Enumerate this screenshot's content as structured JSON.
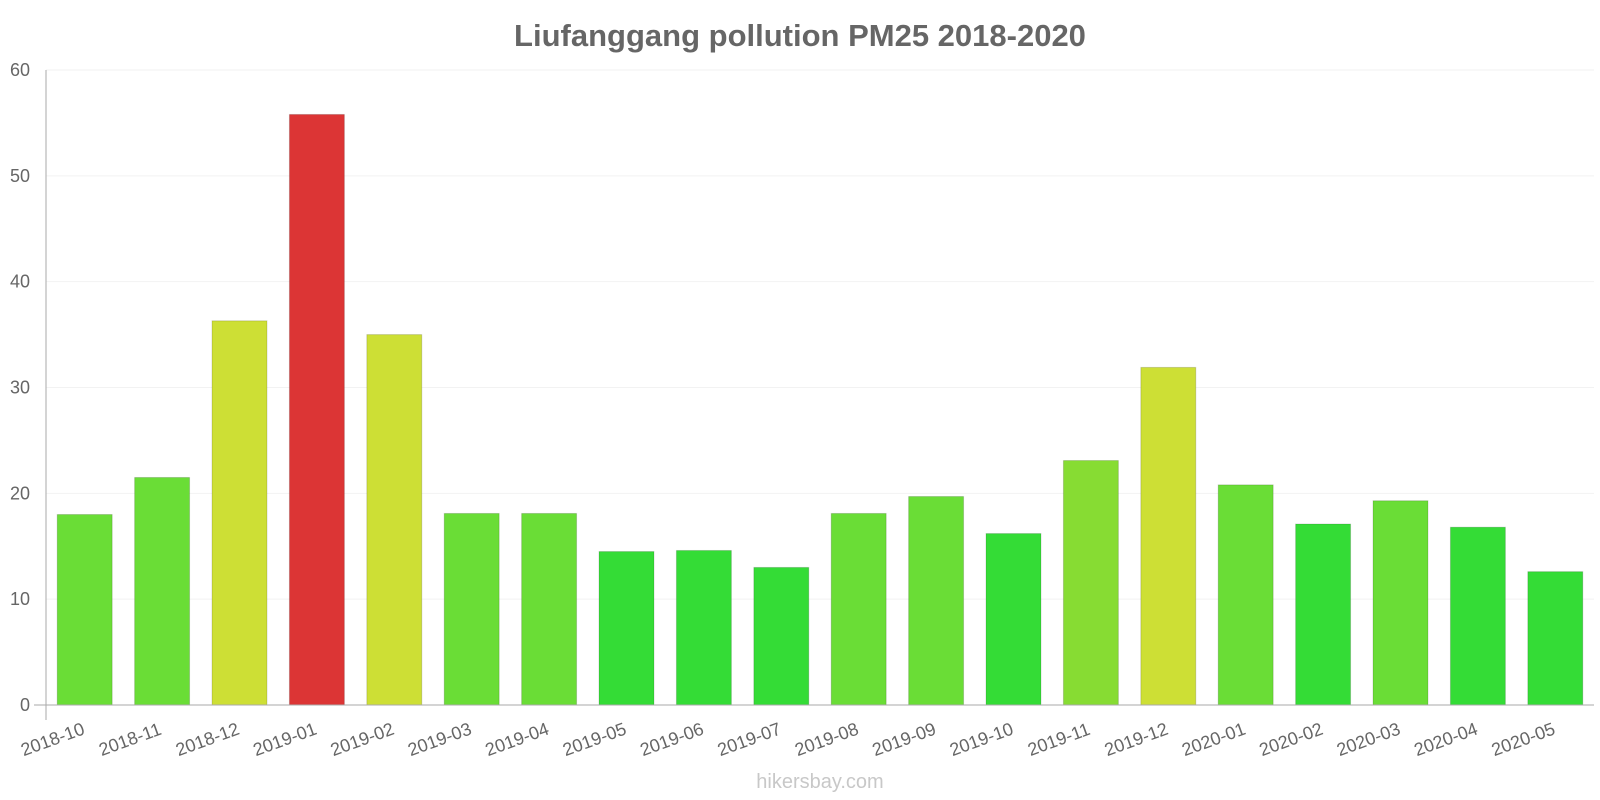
{
  "chart_data": {
    "type": "bar",
    "title": "Liufanggang pollution PM25 2018-2020",
    "xlabel": "",
    "ylabel": "",
    "ylim": [
      0,
      60
    ],
    "yticks": [
      0,
      10,
      20,
      30,
      40,
      50,
      60
    ],
    "grid": true,
    "categories": [
      "2018-10",
      "2018-11",
      "2018-12",
      "2019-01",
      "2019-02",
      "2019-03",
      "2019-04",
      "2019-05",
      "2019-06",
      "2019-07",
      "2019-08",
      "2019-09",
      "2019-10",
      "2019-11",
      "2019-12",
      "2020-01",
      "2020-02",
      "2020-03",
      "2020-04",
      "2020-05"
    ],
    "values": [
      18,
      21.5,
      36.3,
      55.8,
      35,
      18.1,
      18.1,
      14.5,
      14.6,
      13,
      18.1,
      19.7,
      16.2,
      23.1,
      31.9,
      20.8,
      17.1,
      19.3,
      16.8,
      12.6
    ],
    "colors": [
      "#6add36",
      "#6add36",
      "#cddf35",
      "#dc3535",
      "#cddf35",
      "#6add36",
      "#6add36",
      "#34dc36",
      "#34dc36",
      "#34dc36",
      "#6add36",
      "#6add36",
      "#34dc36",
      "#87dc33",
      "#cddf35",
      "#6add36",
      "#34dc36",
      "#6add36",
      "#34dc36",
      "#34dc36"
    ]
  },
  "watermark": "hikersbay.com"
}
